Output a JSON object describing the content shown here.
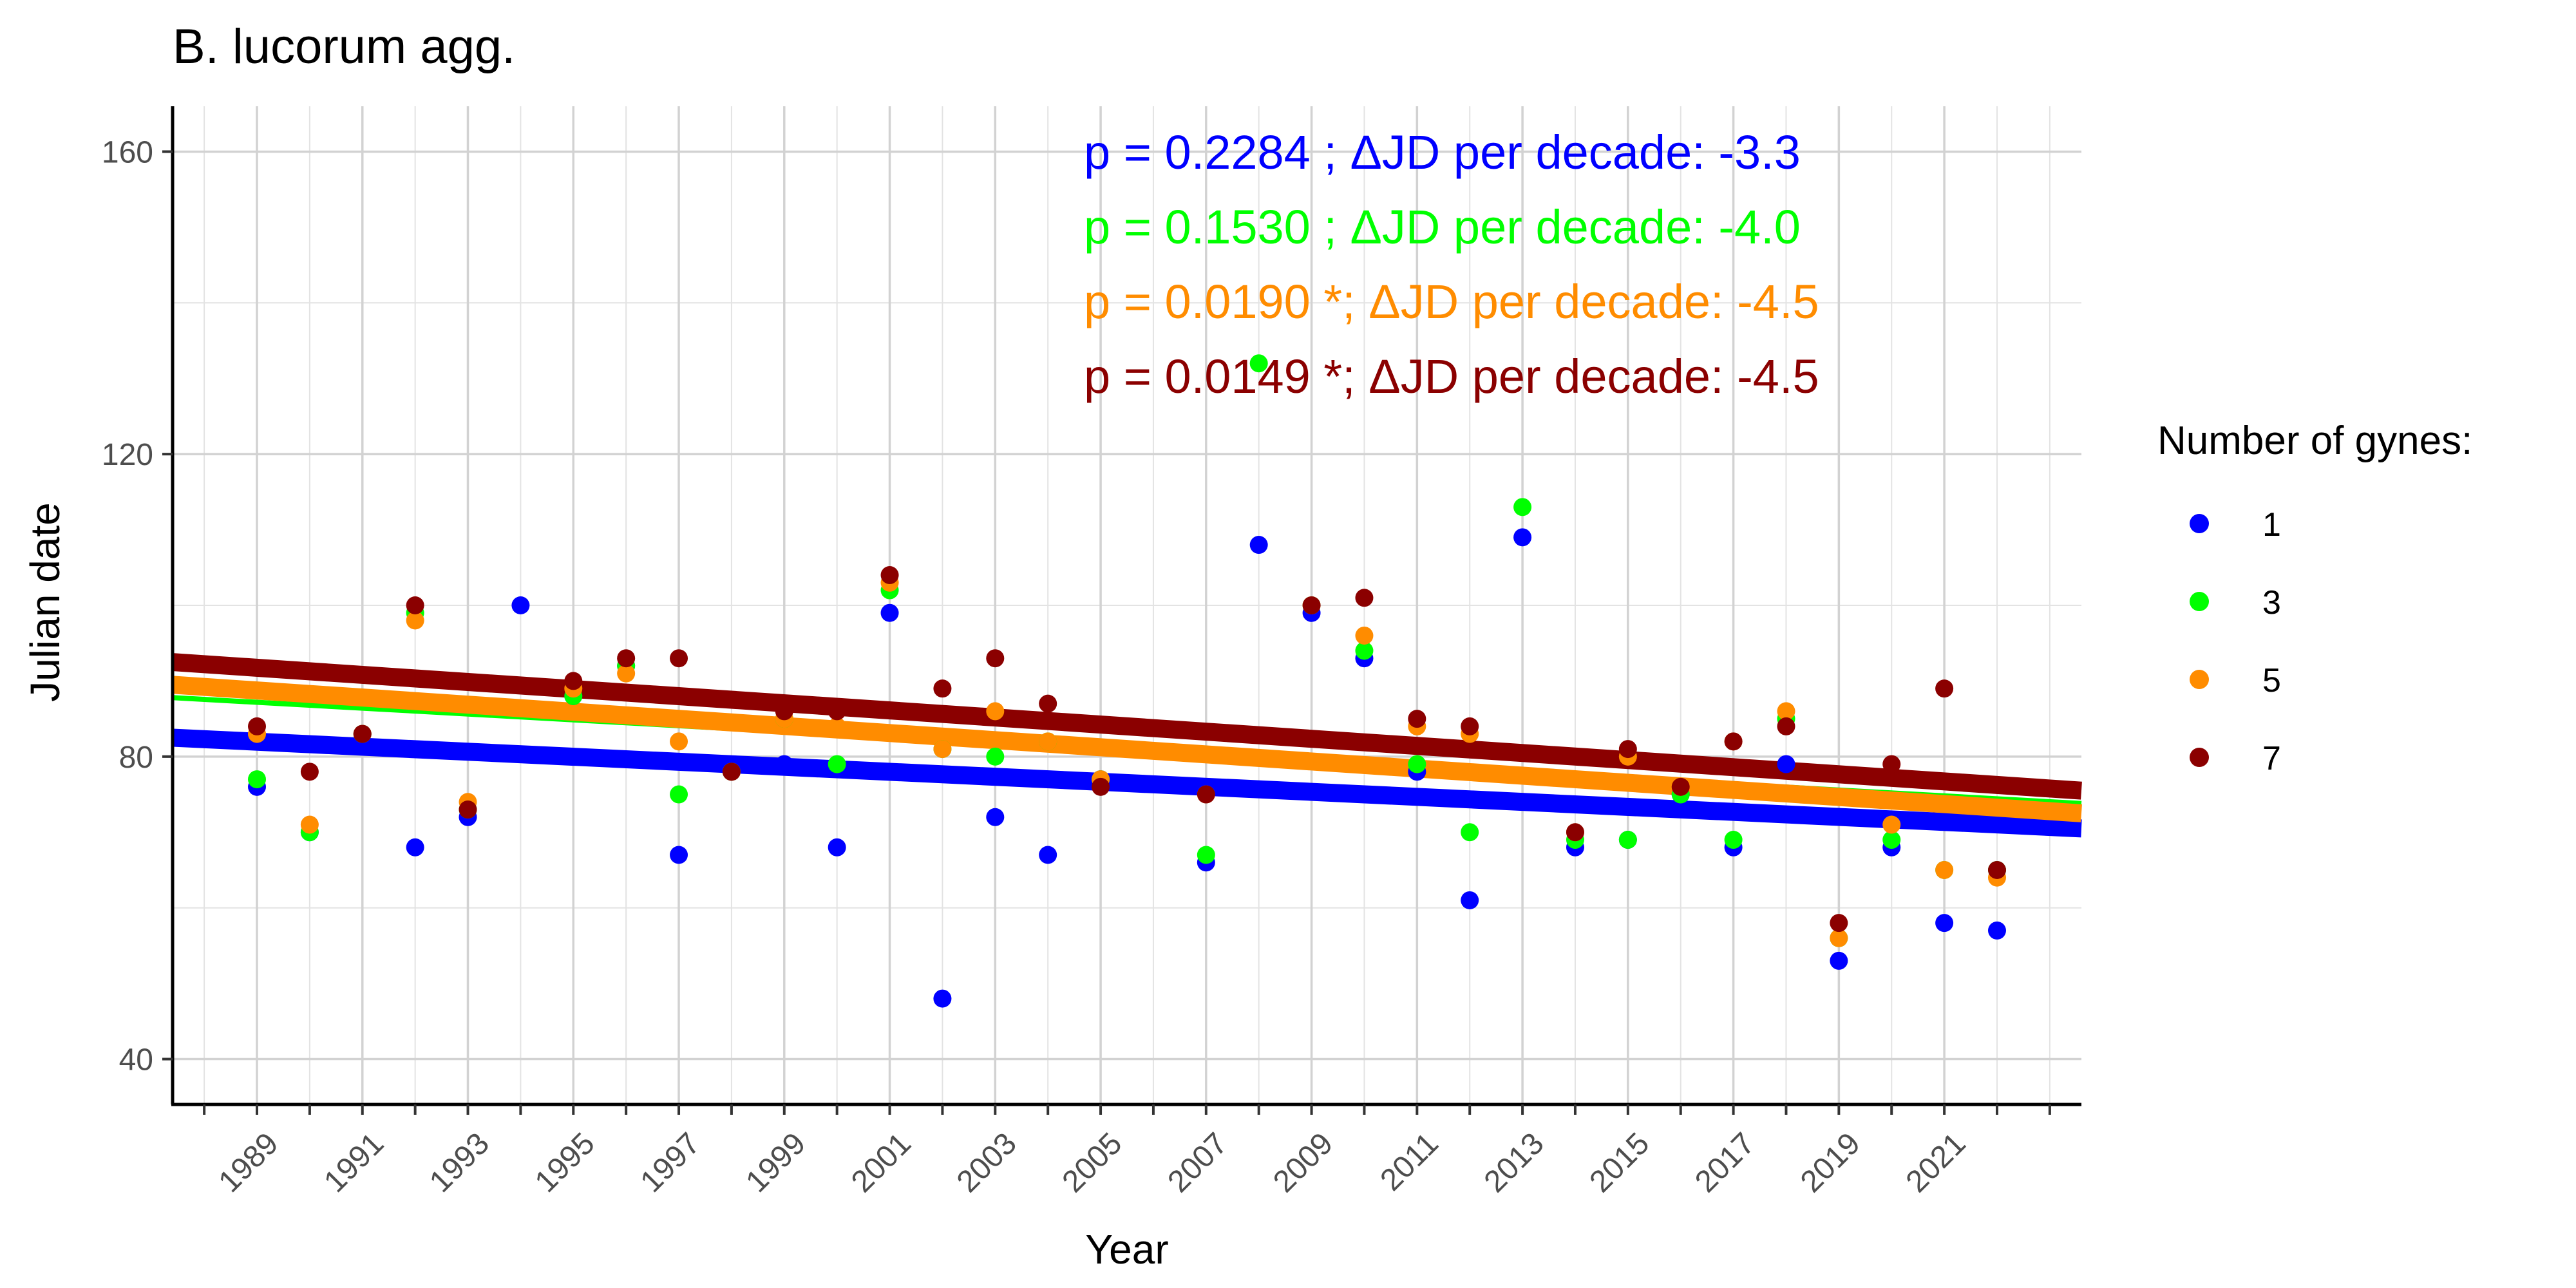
{
  "chart_data": {
    "type": "scatter",
    "title": "B. lucorum agg.",
    "xlabel": "Year",
    "ylabel": "Julian date",
    "xlim": [
      1987.4,
      2023.6
    ],
    "ylim": [
      34,
      166
    ],
    "x_ticks": [
      1989,
      1991,
      1993,
      1995,
      1997,
      1999,
      2001,
      2003,
      2005,
      2007,
      2009,
      2011,
      2013,
      2015,
      2017,
      2019,
      2021
    ],
    "y_ticks": [
      40,
      80,
      120,
      160
    ],
    "grid": true,
    "legend_title": "Number of gynes:",
    "legend_position": "right",
    "series": [
      {
        "name": "1",
        "color": "#0000ff",
        "points": [
          [
            1989,
            76
          ],
          [
            1990,
            70
          ],
          [
            1991,
            83
          ],
          [
            1992,
            68
          ],
          [
            1993,
            72
          ],
          [
            1994,
            100
          ],
          [
            1995,
            88
          ],
          [
            1996,
            92
          ],
          [
            1997,
            67
          ],
          [
            1998,
            78
          ],
          [
            1999,
            79
          ],
          [
            2000,
            68
          ],
          [
            2001,
            99
          ],
          [
            2002,
            48
          ],
          [
            2003,
            72
          ],
          [
            2004,
            67
          ],
          [
            2005,
            77
          ],
          [
            2007,
            66
          ],
          [
            2008,
            108
          ],
          [
            2009,
            99
          ],
          [
            2010,
            93
          ],
          [
            2011,
            78
          ],
          [
            2012,
            61
          ],
          [
            2013,
            109
          ],
          [
            2014,
            68
          ],
          [
            2015,
            69
          ],
          [
            2016,
            75
          ],
          [
            2017,
            68
          ],
          [
            2018,
            79
          ],
          [
            2019,
            53
          ],
          [
            2020,
            68
          ],
          [
            2021,
            58
          ],
          [
            2022,
            57
          ]
        ],
        "trend": [
          82.5,
          70.5
        ],
        "stroke": 28
      },
      {
        "name": "3",
        "color": "#00ff00",
        "points": [
          [
            1989,
            77
          ],
          [
            1990,
            70
          ],
          [
            1991,
            83
          ],
          [
            1992,
            99
          ],
          [
            1993,
            73
          ],
          [
            1995,
            88
          ],
          [
            1996,
            92
          ],
          [
            1997,
            75
          ],
          [
            1998,
            78
          ],
          [
            1999,
            85
          ],
          [
            2000,
            79
          ],
          [
            2001,
            102
          ],
          [
            2002,
            81
          ],
          [
            2003,
            80
          ],
          [
            2004,
            82
          ],
          [
            2005,
            77
          ],
          [
            2007,
            67
          ],
          [
            2008,
            132
          ],
          [
            2009,
            100
          ],
          [
            2010,
            94
          ],
          [
            2011,
            79
          ],
          [
            2012,
            70
          ],
          [
            2013,
            113
          ],
          [
            2014,
            69
          ],
          [
            2015,
            69
          ],
          [
            2016,
            75
          ],
          [
            2017,
            69
          ],
          [
            2018,
            85
          ],
          [
            2019,
            56
          ],
          [
            2020,
            69
          ],
          [
            2021,
            65
          ],
          [
            2022,
            65
          ]
        ],
        "trend": [
          87.8,
          73.8
        ],
        "stroke": 8
      },
      {
        "name": "5",
        "color": "#ff8c00",
        "points": [
          [
            1989,
            83
          ],
          [
            1990,
            71
          ],
          [
            1991,
            83
          ],
          [
            1992,
            98
          ],
          [
            1993,
            74
          ],
          [
            1995,
            89
          ],
          [
            1996,
            91
          ],
          [
            1997,
            82
          ],
          [
            1998,
            78
          ],
          [
            1999,
            85
          ],
          [
            2000,
            84
          ],
          [
            2001,
            103
          ],
          [
            2002,
            81
          ],
          [
            2003,
            86
          ],
          [
            2004,
            82
          ],
          [
            2005,
            77
          ],
          [
            2007,
            75
          ],
          [
            2009,
            100
          ],
          [
            2010,
            96
          ],
          [
            2011,
            84
          ],
          [
            2012,
            83
          ],
          [
            2014,
            70
          ],
          [
            2015,
            80
          ],
          [
            2016,
            76
          ],
          [
            2017,
            82
          ],
          [
            2018,
            86
          ],
          [
            2019,
            56
          ],
          [
            2020,
            71
          ],
          [
            2021,
            65
          ],
          [
            2022,
            64
          ]
        ],
        "trend": [
          89.5,
          72.5
        ],
        "stroke": 28
      },
      {
        "name": "7",
        "color": "#8b0000",
        "points": [
          [
            1989,
            84
          ],
          [
            1990,
            78
          ],
          [
            1991,
            83
          ],
          [
            1992,
            100
          ],
          [
            1993,
            73
          ],
          [
            1995,
            90
          ],
          [
            1996,
            93
          ],
          [
            1997,
            93
          ],
          [
            1998,
            78
          ],
          [
            1999,
            86
          ],
          [
            2000,
            86
          ],
          [
            2001,
            104
          ],
          [
            2002,
            89
          ],
          [
            2003,
            93
          ],
          [
            2004,
            87
          ],
          [
            2005,
            76
          ],
          [
            2007,
            75
          ],
          [
            2009,
            100
          ],
          [
            2010,
            101
          ],
          [
            2011,
            85
          ],
          [
            2012,
            84
          ],
          [
            2014,
            70
          ],
          [
            2015,
            81
          ],
          [
            2016,
            76
          ],
          [
            2017,
            82
          ],
          [
            2018,
            84
          ],
          [
            2019,
            58
          ],
          [
            2020,
            79
          ],
          [
            2021,
            89
          ],
          [
            2022,
            65
          ]
        ],
        "trend": [
          92.5,
          75.5
        ],
        "stroke": 28
      }
    ],
    "annotations": [
      {
        "text": "p = 0.2284 ; ΔJD per decade: -3.3",
        "color": "#0000ff"
      },
      {
        "text": "p = 0.1530 ; ΔJD per decade: -4.0",
        "color": "#00ff00"
      },
      {
        "text": "p = 0.0190 *; ΔJD per decade: -4.5",
        "color": "#ff8c00"
      },
      {
        "text": "p = 0.0149 *; ΔJD per decade: -4.5",
        "color": "#8b0000"
      }
    ]
  }
}
